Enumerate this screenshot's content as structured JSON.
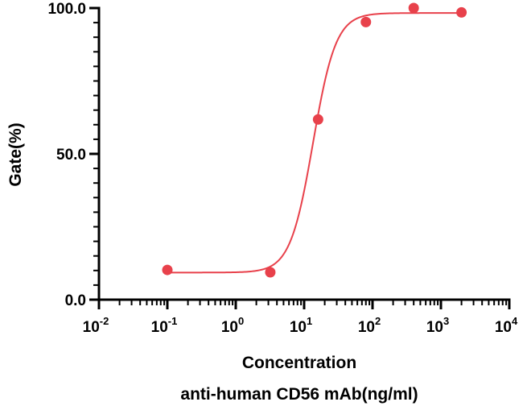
{
  "chart_data": {
    "type": "scatter",
    "xlabel": "Concentration",
    "xlabel_line2": "anti-human CD56 mAb(ng/ml)",
    "ylabel": "Gate(%)",
    "x_scale": "log10",
    "xlim": [
      0.01,
      10000
    ],
    "ylim": [
      0,
      100
    ],
    "x_ticks": [
      {
        "base": "10",
        "exp": "-2"
      },
      {
        "base": "10",
        "exp": "-1"
      },
      {
        "base": "10",
        "exp": "0"
      },
      {
        "base": "10",
        "exp": "1"
      },
      {
        "base": "10",
        "exp": "2"
      },
      {
        "base": "10",
        "exp": "3"
      },
      {
        "base": "10",
        "exp": "4"
      }
    ],
    "y_ticks": [
      "0.0",
      "50.0",
      "100.0"
    ],
    "grid": false,
    "color": "#e8414b",
    "points": [
      {
        "x": 0.1,
        "y": 10.2
      },
      {
        "x": 3.2,
        "y": 9.4
      },
      {
        "x": 16,
        "y": 61.8
      },
      {
        "x": 80,
        "y": 95.2
      },
      {
        "x": 400,
        "y": 100.0
      },
      {
        "x": 2000,
        "y": 98.5
      }
    ],
    "fit": {
      "model": "4PL",
      "bottom": 9.3,
      "top": 98.3,
      "ec50": 13.5,
      "hill": 2.6
    }
  }
}
